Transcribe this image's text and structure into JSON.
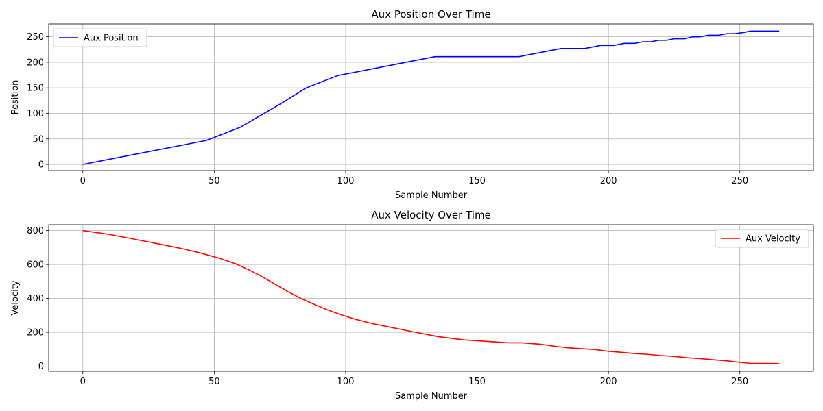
{
  "chart_data": [
    {
      "type": "line",
      "title": "Aux Position Over Time",
      "xlabel": "Sample Number",
      "ylabel": "Position",
      "xlim": [
        -13,
        278
      ],
      "ylim": [
        -12,
        275
      ],
      "xticks": [
        0,
        50,
        100,
        150,
        200,
        250
      ],
      "yticks": [
        0,
        50,
        100,
        150,
        200,
        250
      ],
      "grid": true,
      "legend_position": "top-left",
      "series": [
        {
          "name": "Aux Position",
          "color": "#0000ff",
          "x": [
            0,
            47,
            60,
            73,
            76,
            85,
            97,
            134,
            166,
            182,
            191,
            197,
            202,
            206,
            210,
            213,
            216,
            219,
            222,
            225,
            229,
            232,
            235,
            238,
            242,
            245,
            248,
            251,
            254,
            257,
            265
          ],
          "y": [
            0,
            47,
            73,
            112,
            121,
            150,
            174,
            211,
            211,
            227,
            227,
            233,
            233,
            237,
            237,
            240,
            240,
            243,
            243,
            246,
            246,
            250,
            250,
            253,
            253,
            256,
            256,
            258,
            261,
            261,
            261
          ]
        }
      ]
    },
    {
      "type": "line",
      "title": "Aux Velocity Over Time",
      "xlabel": "Sample Number",
      "ylabel": "Velocity",
      "xlim": [
        -13,
        278
      ],
      "ylim": [
        -30,
        835
      ],
      "xticks": [
        0,
        50,
        100,
        150,
        200,
        250
      ],
      "yticks": [
        0,
        200,
        400,
        600,
        800
      ],
      "grid": true,
      "legend_position": "top-right",
      "series": [
        {
          "name": "Aux Velocity",
          "color": "#ff0000",
          "x": [
            0,
            10,
            20,
            30,
            38,
            45,
            52,
            58,
            63,
            68,
            73,
            78,
            83,
            88,
            93,
            98,
            103,
            110,
            118,
            126,
            135,
            145,
            155,
            162,
            167,
            174,
            180,
            185,
            190,
            195,
            200,
            205,
            210,
            215,
            220,
            225,
            230,
            235,
            240,
            245,
            250,
            254,
            265
          ],
          "y": [
            800,
            778,
            748,
            718,
            693,
            667,
            637,
            605,
            570,
            530,
            485,
            440,
            400,
            365,
            333,
            305,
            280,
            252,
            227,
            202,
            175,
            155,
            145,
            138,
            138,
            130,
            117,
            108,
            103,
            98,
            88,
            82,
            75,
            70,
            63,
            58,
            50,
            45,
            38,
            32,
            23,
            17,
            16
          ]
        }
      ]
    }
  ]
}
